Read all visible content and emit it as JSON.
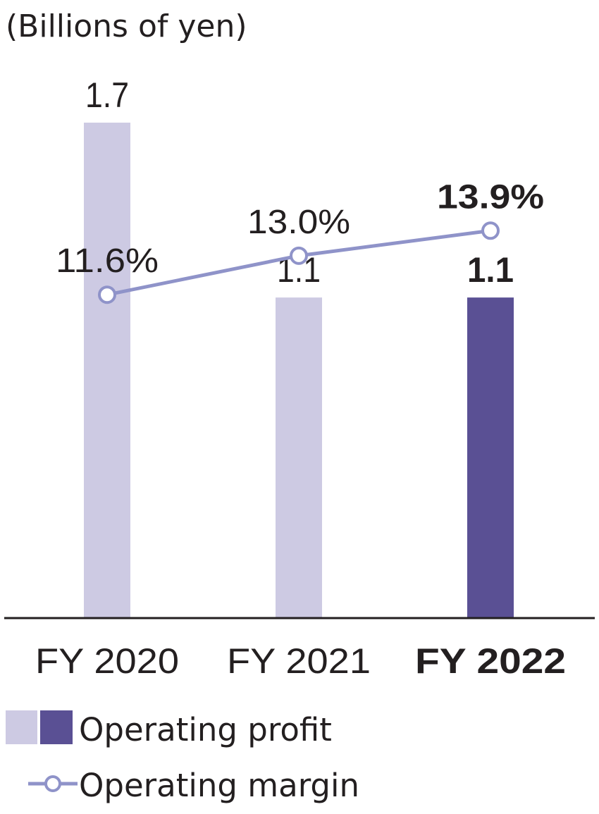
{
  "chart_data": {
    "type": "bar",
    "unit_label": "(Billions of yen)",
    "categories": [
      "FY 2020",
      "FY 2021",
      "FY 2022"
    ],
    "series": [
      {
        "name": "Operating profit",
        "kind": "bar",
        "values": [
          1.7,
          1.1,
          1.1
        ],
        "value_labels": [
          "1.7",
          "1.1",
          "1.1"
        ]
      },
      {
        "name": "Operating margin",
        "kind": "line",
        "axis": "secondary",
        "values": [
          11.6,
          13.0,
          13.9
        ],
        "value_labels": [
          "11.6%",
          "13.0%",
          "13.9%"
        ]
      }
    ],
    "highlight_index": 2,
    "bar_ylim": [
      0,
      2.0
    ],
    "margin_ylim": [
      0,
      20
    ],
    "colors": {
      "bar_past": "#cdcae3",
      "bar_current": "#5a5094",
      "line": "#8f93c9",
      "baseline": "#231f20",
      "text": "#231f20"
    },
    "legend": {
      "bar_label": "Operating profit",
      "line_label": "Operating margin",
      "position": "bottom-left"
    }
  }
}
